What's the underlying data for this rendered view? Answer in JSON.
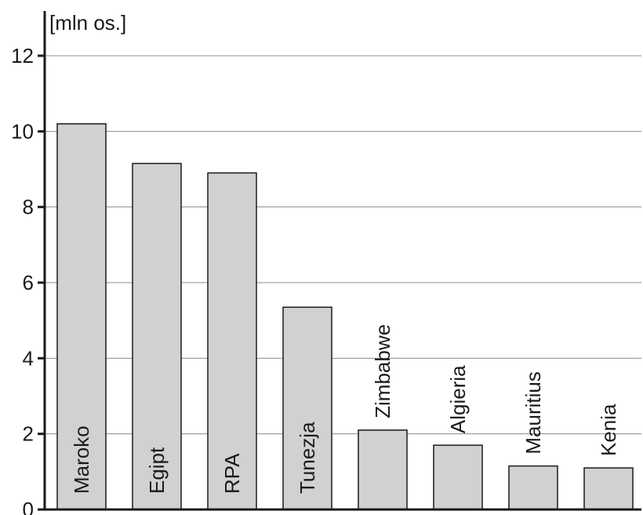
{
  "chart_data": {
    "type": "bar",
    "unit_label": "[mln os.]",
    "categories": [
      "Maroko",
      "Egipt",
      "RPA",
      "Tunezja",
      "Zimbabwe",
      "Algieria",
      "Mauritius",
      "Kenia"
    ],
    "values": [
      10.2,
      9.15,
      8.9,
      5.35,
      2.1,
      1.7,
      1.15,
      1.1
    ],
    "ylim": [
      0,
      12
    ],
    "yticks": [
      "0",
      "2",
      "4",
      "6",
      "8",
      "10",
      "12"
    ],
    "grid": true,
    "colors": {
      "bar": "#d1d1d1",
      "outline": "#1a1a1a",
      "grid": "#8c8c8c"
    }
  }
}
